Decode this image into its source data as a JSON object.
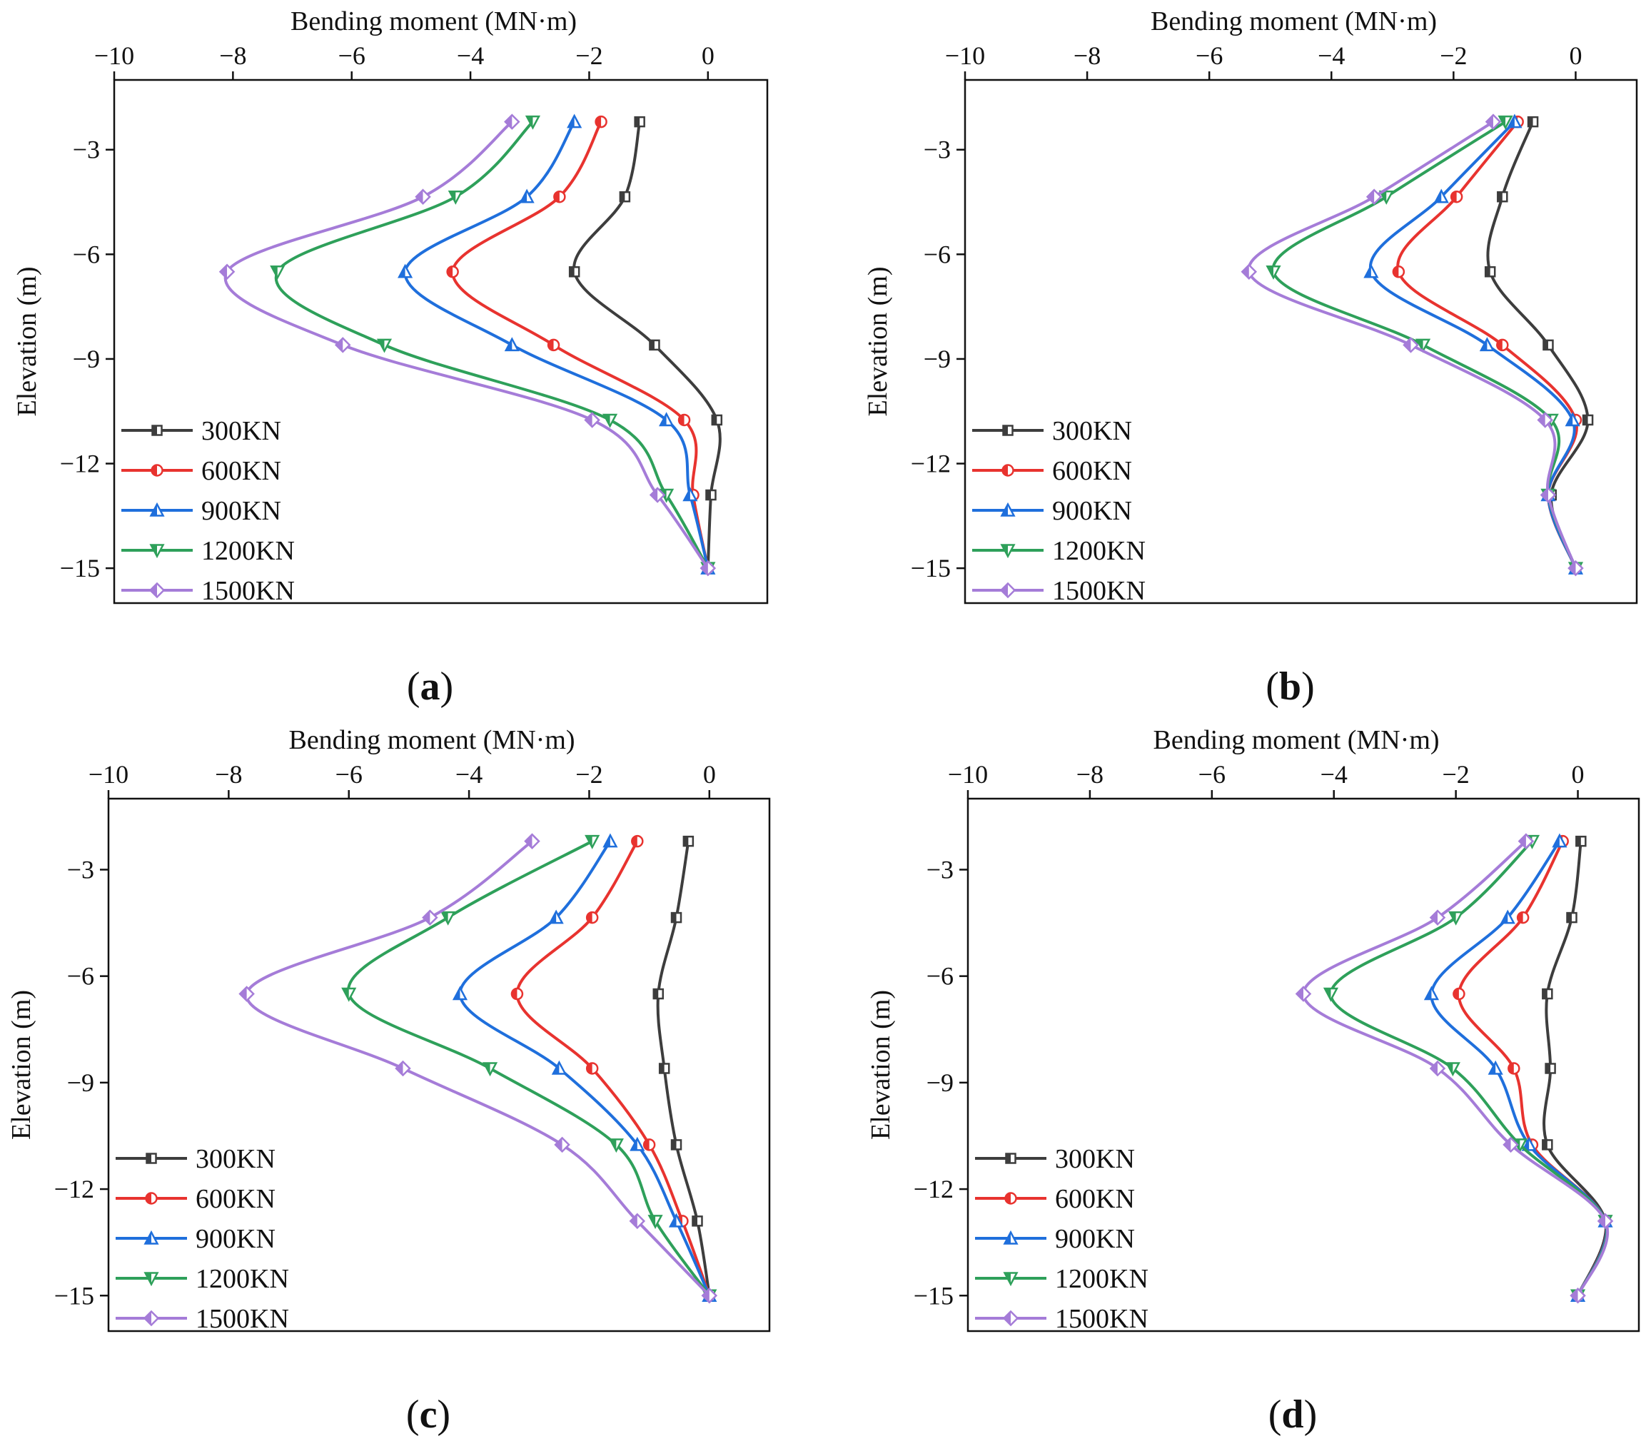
{
  "figure": {
    "legend_labels": [
      "300KN",
      "600KN",
      "900KN",
      "1200KN",
      "1500KN"
    ],
    "series_styles": [
      {
        "name": "300KN",
        "color": "#3d3d3d",
        "marker": "square"
      },
      {
        "name": "600KN",
        "color": "#e8332f",
        "marker": "circle"
      },
      {
        "name": "900KN",
        "color": "#1f6fdc",
        "marker": "triangle-up"
      },
      {
        "name": "1200KN",
        "color": "#2ea05a",
        "marker": "triangle-down"
      },
      {
        "name": "1500KN",
        "color": "#a57cd8",
        "marker": "diamond"
      }
    ]
  },
  "chart_data": [
    {
      "panel": "(a)",
      "type": "line",
      "xlabel": "Bending moment (MN·m)",
      "ylabel": "Elevation (m)",
      "xlim": [
        -10,
        1
      ],
      "ylim": [
        -16,
        -1
      ],
      "xticks": [
        -10,
        -8,
        -6,
        -4,
        -2,
        0
      ],
      "yticks": [
        -3,
        -6,
        -9,
        -12,
        -15
      ],
      "legend_position": "lower-left",
      "elevations": [
        -2.2,
        -4.35,
        -6.5,
        -8.6,
        -10.75,
        -12.9,
        -15.0
      ],
      "series": [
        {
          "name": "300KN",
          "values": [
            -1.15,
            -1.4,
            -2.25,
            -0.9,
            0.15,
            0.05,
            0.0
          ]
        },
        {
          "name": "600KN",
          "values": [
            -1.8,
            -2.5,
            -4.3,
            -2.6,
            -0.4,
            -0.25,
            0.0
          ]
        },
        {
          "name": "900KN",
          "values": [
            -2.25,
            -3.05,
            -5.1,
            -3.3,
            -0.7,
            -0.3,
            0.0
          ]
        },
        {
          "name": "1200KN",
          "values": [
            -2.95,
            -4.25,
            -7.25,
            -5.45,
            -1.65,
            -0.7,
            0.0
          ]
        },
        {
          "name": "1500KN",
          "values": [
            -3.3,
            -4.8,
            -8.1,
            -6.15,
            -1.95,
            -0.85,
            0.0
          ]
        }
      ]
    },
    {
      "panel": "(b)",
      "type": "line",
      "xlabel": "Bending moment (MN·m)",
      "ylabel": "Elevation (m)",
      "xlim": [
        -10,
        1
      ],
      "ylim": [
        -16,
        -1
      ],
      "xticks": [
        -10,
        -8,
        -6,
        -4,
        -2,
        0
      ],
      "yticks": [
        -3,
        -6,
        -9,
        -12,
        -15
      ],
      "legend_position": "lower-left",
      "elevations": [
        -2.2,
        -4.35,
        -6.5,
        -8.6,
        -10.75,
        -12.9,
        -15.0
      ],
      "series": [
        {
          "name": "300KN",
          "values": [
            -0.7,
            -1.2,
            -1.4,
            -0.45,
            0.2,
            -0.4,
            0.0
          ]
        },
        {
          "name": "600KN",
          "values": [
            -0.95,
            -1.95,
            -2.9,
            -1.2,
            0.0,
            -0.45,
            0.0
          ]
        },
        {
          "name": "900KN",
          "values": [
            -1.0,
            -2.2,
            -3.35,
            -1.45,
            -0.05,
            -0.45,
            0.0
          ]
        },
        {
          "name": "1200KN",
          "values": [
            -1.15,
            -3.1,
            -4.95,
            -2.5,
            -0.4,
            -0.45,
            0.0
          ]
        },
        {
          "name": "1500KN",
          "values": [
            -1.35,
            -3.3,
            -5.35,
            -2.7,
            -0.5,
            -0.45,
            0.0
          ]
        }
      ]
    },
    {
      "panel": "(c)",
      "type": "line",
      "xlabel": "Bending moment (MN·m)",
      "ylabel": "Elevation (m)",
      "xlim": [
        -10,
        1
      ],
      "ylim": [
        -16,
        -1
      ],
      "xticks": [
        -10,
        -8,
        -6,
        -4,
        -2,
        0
      ],
      "yticks": [
        -3,
        -6,
        -9,
        -12,
        -15
      ],
      "legend_position": "lower-left",
      "elevations": [
        -2.2,
        -4.35,
        -6.5,
        -8.6,
        -10.75,
        -12.9,
        -15.0
      ],
      "series": [
        {
          "name": "300KN",
          "values": [
            -0.35,
            -0.55,
            -0.85,
            -0.75,
            -0.55,
            -0.2,
            0.0
          ]
        },
        {
          "name": "600KN",
          "values": [
            -1.2,
            -1.95,
            -3.2,
            -1.95,
            -1.0,
            -0.45,
            0.0
          ]
        },
        {
          "name": "900KN",
          "values": [
            -1.65,
            -2.55,
            -4.15,
            -2.5,
            -1.2,
            -0.55,
            0.0
          ]
        },
        {
          "name": "1200KN",
          "values": [
            -1.95,
            -4.35,
            -6.0,
            -3.65,
            -1.55,
            -0.9,
            0.0
          ]
        },
        {
          "name": "1500KN",
          "values": [
            -2.95,
            -4.65,
            -7.7,
            -5.1,
            -2.45,
            -1.2,
            0.0
          ]
        }
      ]
    },
    {
      "panel": "(d)",
      "type": "line",
      "xlabel": "Bending moment (MN·m)",
      "ylabel": "Elevation (m)",
      "xlim": [
        -10,
        1
      ],
      "ylim": [
        -16,
        -1
      ],
      "xticks": [
        -10,
        -8,
        -6,
        -4,
        -2,
        0
      ],
      "yticks": [
        -3,
        -6,
        -9,
        -12,
        -15
      ],
      "legend_position": "lower-left",
      "elevations": [
        -2.2,
        -4.35,
        -6.5,
        -8.6,
        -10.75,
        -12.9,
        -15.0
      ],
      "series": [
        {
          "name": "300KN",
          "values": [
            0.05,
            -0.1,
            -0.5,
            -0.45,
            -0.5,
            0.45,
            0.0
          ]
        },
        {
          "name": "600KN",
          "values": [
            -0.25,
            -0.9,
            -1.95,
            -1.05,
            -0.75,
            0.45,
            0.0
          ]
        },
        {
          "name": "900KN",
          "values": [
            -0.3,
            -1.15,
            -2.4,
            -1.35,
            -0.8,
            0.45,
            0.0
          ]
        },
        {
          "name": "1200KN",
          "values": [
            -0.75,
            -2.0,
            -4.05,
            -2.05,
            -0.95,
            0.45,
            0.0
          ]
        },
        {
          "name": "1500KN",
          "values": [
            -0.85,
            -2.3,
            -4.5,
            -2.3,
            -1.1,
            0.45,
            0.0
          ]
        }
      ]
    }
  ]
}
